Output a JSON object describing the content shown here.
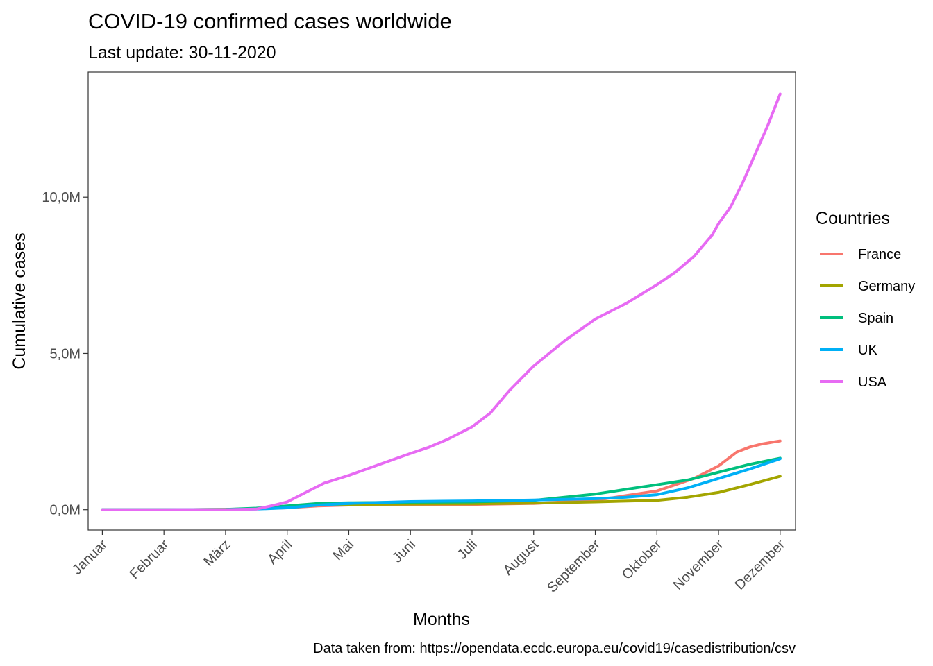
{
  "chart_data": {
    "type": "line",
    "title": "COVID-19 confirmed cases worldwide",
    "subtitle": "Last update: 30-11-2020",
    "xlabel": "Months",
    "ylabel": "Cumulative cases",
    "caption": "Data taken from: https://opendata.ecdc.europa.eu/covid19/casedistribution/csv",
    "legend_title": "Countries",
    "legend_position": "right",
    "grid": false,
    "x_ticks": [
      "Januar",
      "Februar",
      "März",
      "April",
      "Mai",
      "Juni",
      "Juli",
      "August",
      "September",
      "Oktober",
      "November",
      "Dezember"
    ],
    "y_ticks": [
      "0,0M",
      "5,0M",
      "10,0M"
    ],
    "y_tick_values": [
      0,
      5,
      10
    ],
    "x_unit": "month (1 = 1 Jan 2020)",
    "y_unit": "million cases",
    "xlim": [
      0.77,
      12.25
    ],
    "ylim": [
      -0.65,
      14.0
    ],
    "series": [
      {
        "name": "France",
        "color": "#F8766D",
        "x": [
          1,
          2,
          3,
          3.5,
          4,
          4.5,
          5,
          5.5,
          6,
          7,
          8,
          8.5,
          9,
          9.5,
          10,
          10.3,
          10.6,
          10.8,
          11,
          11.1,
          11.2,
          11.3,
          11.5,
          11.7,
          11.9,
          12
        ],
        "y": [
          0,
          0,
          0.01,
          0.03,
          0.06,
          0.12,
          0.15,
          0.15,
          0.16,
          0.17,
          0.2,
          0.25,
          0.3,
          0.45,
          0.6,
          0.8,
          1.0,
          1.2,
          1.4,
          1.55,
          1.7,
          1.85,
          2.0,
          2.1,
          2.17,
          2.2
        ]
      },
      {
        "name": "Germany",
        "color": "#A3A500",
        "x": [
          1,
          2,
          3,
          3.5,
          4,
          4.5,
          5,
          6,
          7,
          8,
          9,
          10,
          10.5,
          11,
          11.5,
          12
        ],
        "y": [
          0,
          0,
          0.01,
          0.03,
          0.08,
          0.15,
          0.17,
          0.18,
          0.19,
          0.21,
          0.25,
          0.3,
          0.4,
          0.55,
          0.8,
          1.07
        ]
      },
      {
        "name": "Spain",
        "color": "#00BF7D",
        "x": [
          1,
          2,
          3,
          3.5,
          4,
          4.5,
          5,
          6,
          7,
          8,
          8.5,
          9,
          9.5,
          10,
          10.5,
          11,
          11.5,
          12
        ],
        "y": [
          0,
          0,
          0.01,
          0.05,
          0.12,
          0.2,
          0.22,
          0.24,
          0.25,
          0.3,
          0.4,
          0.5,
          0.65,
          0.8,
          0.95,
          1.2,
          1.45,
          1.65
        ]
      },
      {
        "name": "UK",
        "color": "#00B0F6",
        "x": [
          1,
          2,
          3,
          3.5,
          4,
          4.5,
          5,
          6,
          7,
          8,
          9,
          9.5,
          10,
          10.5,
          11,
          11.5,
          12
        ],
        "y": [
          0,
          0,
          0.005,
          0.02,
          0.06,
          0.15,
          0.2,
          0.26,
          0.28,
          0.31,
          0.35,
          0.4,
          0.48,
          0.7,
          1.0,
          1.3,
          1.63
        ]
      },
      {
        "name": "USA",
        "color": "#E76BF3",
        "x": [
          1,
          2,
          3,
          3.5,
          3.8,
          4,
          4.3,
          4.6,
          5,
          5.5,
          6,
          6.3,
          6.6,
          7,
          7.3,
          7.6,
          8,
          8.5,
          9,
          9.5,
          10,
          10.3,
          10.6,
          10.9,
          11,
          11.2,
          11.4,
          11.6,
          11.8,
          12
        ],
        "y": [
          0,
          0,
          0.002,
          0.02,
          0.15,
          0.25,
          0.55,
          0.85,
          1.1,
          1.45,
          1.8,
          2.0,
          2.25,
          2.65,
          3.1,
          3.8,
          4.6,
          5.4,
          6.1,
          6.6,
          7.2,
          7.6,
          8.1,
          8.8,
          9.15,
          9.7,
          10.5,
          11.4,
          12.3,
          13.3
        ]
      }
    ]
  }
}
